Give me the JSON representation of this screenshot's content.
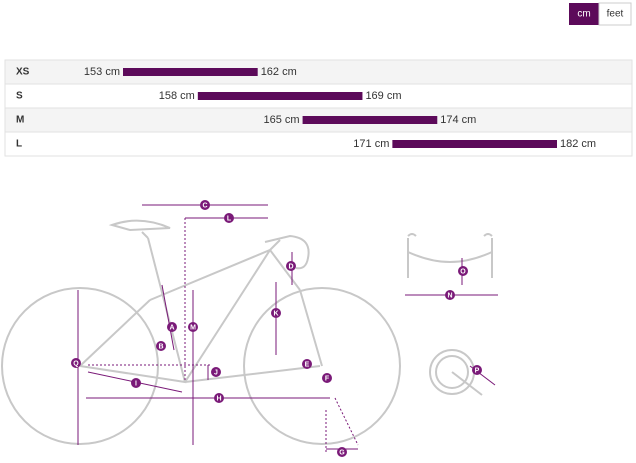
{
  "unit_toggle": [
    "cm",
    "feet"
  ],
  "chart_data": {
    "type": "range",
    "categories": [
      "XS",
      "S",
      "M",
      "L"
    ],
    "color": "#5c0a5a",
    "series": [
      {
        "values": [
          153,
          158,
          165,
          171
        ],
        "value_labels": [
          "153 cm",
          "158 cm",
          "165 cm",
          "171 cm"
        ]
      },
      {
        "values": [
          162,
          169,
          174,
          182
        ],
        "value_labels": [
          "162 cm",
          "169 cm",
          "174 cm",
          "182 cm"
        ]
      }
    ]
  },
  "diagram_labels": [
    "A",
    "B",
    "C",
    "D",
    "E",
    "F",
    "G",
    "H",
    "I",
    "J",
    "K",
    "L",
    "M",
    "N",
    "O",
    "P",
    "Q"
  ]
}
